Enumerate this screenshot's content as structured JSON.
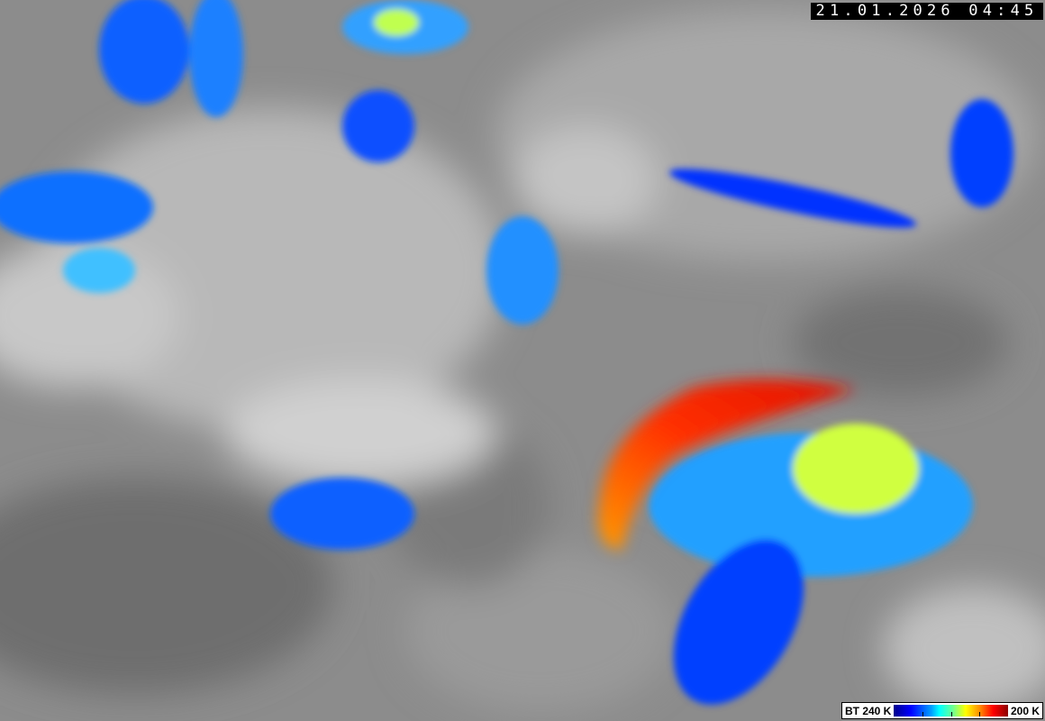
{
  "timestamp": "21.01.2026 04:45",
  "legend": {
    "min_label": "BT 240 K",
    "max_label": "200 K",
    "colors": [
      "#00008c",
      "#0000ff",
      "#00ffff",
      "#ffff00",
      "#ff0000",
      "#8c0000"
    ]
  }
}
